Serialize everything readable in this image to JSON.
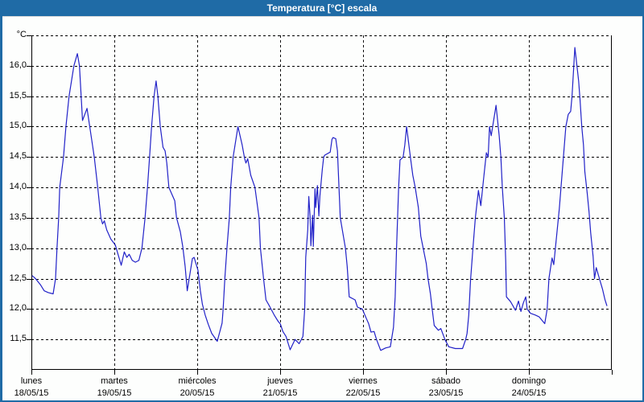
{
  "window": {
    "title": "Temperatura [°C] escala",
    "titlebar_color": "#1f6ba6",
    "frame_color": "#1f6ba6"
  },
  "chart_data": {
    "type": "line",
    "title": "Temperatura [°C] escala",
    "unit_label": "°C",
    "line_color": "#2222c8",
    "grid": true,
    "grid_style": "dashed",
    "ylim": [
      11.0,
      16.5
    ],
    "ytick_step": 0.5,
    "yticks": [
      [
        16.5,
        "°C"
      ],
      [
        16.0,
        "16,0"
      ],
      [
        15.5,
        "15,5"
      ],
      [
        15.0,
        "15,0"
      ],
      [
        14.5,
        "14,5"
      ],
      [
        14.0,
        "14,0"
      ],
      [
        13.5,
        "13,5"
      ],
      [
        13.0,
        "13,0"
      ],
      [
        12.5,
        "12,5"
      ],
      [
        12.0,
        "12,0"
      ],
      [
        11.5,
        "11,5"
      ]
    ],
    "x_hours_range": [
      0,
      168
    ],
    "x_days": [
      {
        "name": "lunes",
        "date": "18/05/15"
      },
      {
        "name": "martes",
        "date": "19/05/15"
      },
      {
        "name": "miércoles",
        "date": "20/05/15"
      },
      {
        "name": "jueves",
        "date": "21/05/15"
      },
      {
        "name": "viernes",
        "date": "22/05/15"
      },
      {
        "name": "sábado",
        "date": "23/05/15"
      },
      {
        "name": "domingo",
        "date": "24/05/15"
      }
    ],
    "series": [
      {
        "name": "Temperatura [°C]",
        "points": [
          [
            0.2,
            12.55
          ],
          [
            1.2,
            12.5
          ],
          [
            2.6,
            12.4
          ],
          [
            3.7,
            12.3
          ],
          [
            4.9,
            12.27
          ],
          [
            6.3,
            12.25
          ],
          [
            7.0,
            12.5
          ],
          [
            7.4,
            13.0
          ],
          [
            7.9,
            13.5
          ],
          [
            8.2,
            14.0
          ],
          [
            9.3,
            14.5
          ],
          [
            10.0,
            15.0
          ],
          [
            10.9,
            15.5
          ],
          [
            12.3,
            16.0
          ],
          [
            13.3,
            16.2
          ],
          [
            13.9,
            16.0
          ],
          [
            14.8,
            15.1
          ],
          [
            16.1,
            15.3
          ],
          [
            18.2,
            14.5
          ],
          [
            19.2,
            14.0
          ],
          [
            20.1,
            13.5
          ],
          [
            20.6,
            13.4
          ],
          [
            21.1,
            13.45
          ],
          [
            21.8,
            13.3
          ],
          [
            23.0,
            13.15
          ],
          [
            24.3,
            13.05
          ],
          [
            26.0,
            12.72
          ],
          [
            26.9,
            12.94
          ],
          [
            27.6,
            12.85
          ],
          [
            28.3,
            12.9
          ],
          [
            29.2,
            12.8
          ],
          [
            30.1,
            12.77
          ],
          [
            31.1,
            12.8
          ],
          [
            32.0,
            13.0
          ],
          [
            32.9,
            13.5
          ],
          [
            33.6,
            14.0
          ],
          [
            34.2,
            14.5
          ],
          [
            34.8,
            15.0
          ],
          [
            35.5,
            15.5
          ],
          [
            36.1,
            15.75
          ],
          [
            36.6,
            15.5
          ],
          [
            37.3,
            15.0
          ],
          [
            38.1,
            14.66
          ],
          [
            38.7,
            14.6
          ],
          [
            39.2,
            14.4
          ],
          [
            39.8,
            14.0
          ],
          [
            41.5,
            13.78
          ],
          [
            42.0,
            13.5
          ],
          [
            43.1,
            13.27
          ],
          [
            43.8,
            13.03
          ],
          [
            44.5,
            12.7
          ],
          [
            45.1,
            12.3
          ],
          [
            46.6,
            12.83
          ],
          [
            47.1,
            12.85
          ],
          [
            48.2,
            12.64
          ],
          [
            48.9,
            12.3
          ],
          [
            49.5,
            12.08
          ],
          [
            50.3,
            11.9
          ],
          [
            51.2,
            11.75
          ],
          [
            52.2,
            11.6
          ],
          [
            53.8,
            11.47
          ],
          [
            55.2,
            11.77
          ],
          [
            55.5,
            12.0
          ],
          [
            56.0,
            12.5
          ],
          [
            56.6,
            13.0
          ],
          [
            57.3,
            13.5
          ],
          [
            57.7,
            14.0
          ],
          [
            58.4,
            14.5
          ],
          [
            59.8,
            15.0
          ],
          [
            61.0,
            14.7
          ],
          [
            61.7,
            14.48
          ],
          [
            62.1,
            14.4
          ],
          [
            62.6,
            14.47
          ],
          [
            63.5,
            14.2
          ],
          [
            64.7,
            14.0
          ],
          [
            65.9,
            13.5
          ],
          [
            66.3,
            13.0
          ],
          [
            67.2,
            12.5
          ],
          [
            67.9,
            12.15
          ],
          [
            68.9,
            12.05
          ],
          [
            70.3,
            11.9
          ],
          [
            71.4,
            11.8
          ],
          [
            72.1,
            11.75
          ],
          [
            72.8,
            11.63
          ],
          [
            73.7,
            11.55
          ],
          [
            74.9,
            11.33
          ],
          [
            76.3,
            11.5
          ],
          [
            77.5,
            11.43
          ],
          [
            78.6,
            11.55
          ],
          [
            79.1,
            12.0
          ],
          [
            79.4,
            12.85
          ],
          [
            80.0,
            13.3
          ],
          [
            80.3,
            13.85
          ],
          [
            80.7,
            13.5
          ],
          [
            80.9,
            13.04
          ],
          [
            81.4,
            13.54
          ],
          [
            81.6,
            13.03
          ],
          [
            82.1,
            13.98
          ],
          [
            82.3,
            13.67
          ],
          [
            82.8,
            14.03
          ],
          [
            83.2,
            13.53
          ],
          [
            83.5,
            13.86
          ],
          [
            84.2,
            14.3
          ],
          [
            84.6,
            14.5
          ],
          [
            84.9,
            14.53
          ],
          [
            86.5,
            14.58
          ],
          [
            87.0,
            14.79
          ],
          [
            87.3,
            14.82
          ],
          [
            88.1,
            14.8
          ],
          [
            88.6,
            14.6
          ],
          [
            89.0,
            14.03
          ],
          [
            89.4,
            13.5
          ],
          [
            90.9,
            13.0
          ],
          [
            91.4,
            12.7
          ],
          [
            92.0,
            12.2
          ],
          [
            93.7,
            12.15
          ],
          [
            94.4,
            12.03
          ],
          [
            95.8,
            12.0
          ],
          [
            96.9,
            11.85
          ],
          [
            97.6,
            11.76
          ],
          [
            98.3,
            11.62
          ],
          [
            99.2,
            11.63
          ],
          [
            99.9,
            11.5
          ],
          [
            101.1,
            11.32
          ],
          [
            102.5,
            11.36
          ],
          [
            103.9,
            11.38
          ],
          [
            104.8,
            11.7
          ],
          [
            105.3,
            12.2
          ],
          [
            105.7,
            13.0
          ],
          [
            106.0,
            13.5
          ],
          [
            106.3,
            14.0
          ],
          [
            106.7,
            14.45
          ],
          [
            107.6,
            14.5
          ],
          [
            108.1,
            14.7
          ],
          [
            108.6,
            15.0
          ],
          [
            109.7,
            14.5
          ],
          [
            110.4,
            14.2
          ],
          [
            111.1,
            14.0
          ],
          [
            112.0,
            13.67
          ],
          [
            112.7,
            13.2
          ],
          [
            113.4,
            13.0
          ],
          [
            114.3,
            12.75
          ],
          [
            114.8,
            12.5
          ],
          [
            115.5,
            12.25
          ],
          [
            115.9,
            12.05
          ],
          [
            116.6,
            11.73
          ],
          [
            117.8,
            11.65
          ],
          [
            118.5,
            11.68
          ],
          [
            119.7,
            11.5
          ],
          [
            120.8,
            11.38
          ],
          [
            122.7,
            11.35
          ],
          [
            124.8,
            11.35
          ],
          [
            125.7,
            11.5
          ],
          [
            126.1,
            11.6
          ],
          [
            126.6,
            11.9
          ],
          [
            127.1,
            12.47
          ],
          [
            127.8,
            13.0
          ],
          [
            128.5,
            13.5
          ],
          [
            129.4,
            13.95
          ],
          [
            130.1,
            13.7
          ],
          [
            131.0,
            14.2
          ],
          [
            131.7,
            14.57
          ],
          [
            132.2,
            14.5
          ],
          [
            132.6,
            15.0
          ],
          [
            133.1,
            14.85
          ],
          [
            133.8,
            15.1
          ],
          [
            134.5,
            15.35
          ],
          [
            135.4,
            14.85
          ],
          [
            135.9,
            14.5
          ],
          [
            136.3,
            14.0
          ],
          [
            136.9,
            13.5
          ],
          [
            137.3,
            12.8
          ],
          [
            137.5,
            12.2
          ],
          [
            138.7,
            12.12
          ],
          [
            139.4,
            12.05
          ],
          [
            140.1,
            11.98
          ],
          [
            141.0,
            12.13
          ],
          [
            141.7,
            11.96
          ],
          [
            142.4,
            12.1
          ],
          [
            143.1,
            12.2
          ],
          [
            143.5,
            12.0
          ],
          [
            144.5,
            11.93
          ],
          [
            145.9,
            11.9
          ],
          [
            147.0,
            11.87
          ],
          [
            148.0,
            11.8
          ],
          [
            148.6,
            11.76
          ],
          [
            149.3,
            12.0
          ],
          [
            149.8,
            12.5
          ],
          [
            150.7,
            12.84
          ],
          [
            151.2,
            12.73
          ],
          [
            152.1,
            13.25
          ],
          [
            152.8,
            13.65
          ],
          [
            153.3,
            14.0
          ],
          [
            154.0,
            14.5
          ],
          [
            154.7,
            15.0
          ],
          [
            155.4,
            15.2
          ],
          [
            156.1,
            15.25
          ],
          [
            156.5,
            15.5
          ],
          [
            157.0,
            16.0
          ],
          [
            157.3,
            16.3
          ],
          [
            157.9,
            16.0
          ],
          [
            158.4,
            15.75
          ],
          [
            158.8,
            15.45
          ],
          [
            159.3,
            15.0
          ],
          [
            159.8,
            14.7
          ],
          [
            160.2,
            14.26
          ],
          [
            160.9,
            13.9
          ],
          [
            161.4,
            13.6
          ],
          [
            161.9,
            13.25
          ],
          [
            162.6,
            12.86
          ],
          [
            163.0,
            12.5
          ],
          [
            163.5,
            12.68
          ],
          [
            164.4,
            12.5
          ],
          [
            165.3,
            12.33
          ],
          [
            166.0,
            12.16
          ],
          [
            166.6,
            12.05
          ]
        ]
      }
    ]
  }
}
